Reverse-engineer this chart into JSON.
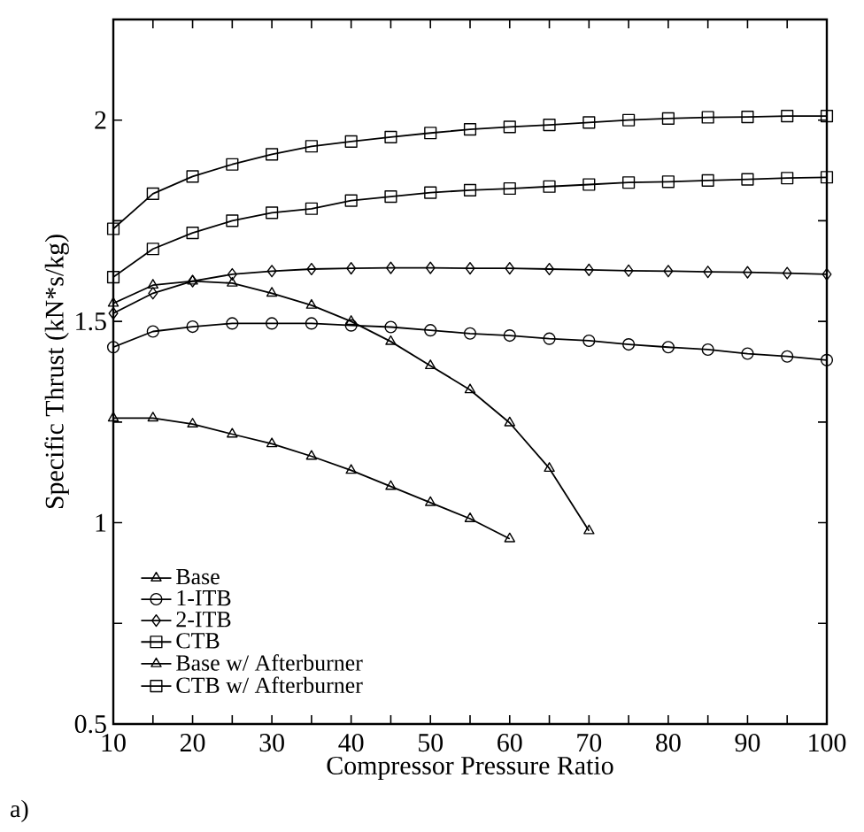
{
  "chart_data": {
    "type": "line",
    "xlabel": "Compressor Pressure Ratio",
    "ylabel": "Specific Thrust (kN*s/kg)",
    "xlim": [
      10,
      100
    ],
    "ylim": [
      0.5,
      2.25
    ],
    "xticks": [
      10,
      {
        "value": 15,
        "label": null
      },
      20,
      {
        "value": 25,
        "label": null
      },
      30,
      {
        "value": 35,
        "label": null
      },
      40,
      {
        "value": 45,
        "label": null
      },
      50,
      {
        "value": 55,
        "label": null
      },
      60,
      {
        "value": 65,
        "label": null
      },
      70,
      {
        "value": 75,
        "label": null
      },
      80,
      {
        "value": 85,
        "label": null
      },
      90,
      {
        "value": 95,
        "label": null
      },
      100
    ],
    "yticks": [
      0.5,
      {
        "value": 0.75,
        "label": null
      },
      1,
      {
        "value": 1.25,
        "label": null
      },
      1.5,
      {
        "value": 1.75,
        "label": null
      },
      2
    ],
    "legend": "bottom left",
    "grid": false,
    "line_style": "solid",
    "annotations": [
      "a)"
    ],
    "series": [
      {
        "name": "Base",
        "color": "#000000",
        "marker": "triangle",
        "x": [
          10,
          15,
          20,
          25,
          30,
          35,
          40,
          45,
          50,
          55,
          60
        ],
        "values": [
          1.26,
          1.26,
          1.245,
          1.22,
          1.196,
          1.165,
          1.13,
          1.09,
          1.05,
          1.01,
          0.96
        ]
      },
      {
        "name": "1-ITB",
        "color": "#000000",
        "marker": "circle",
        "x": [
          10,
          15,
          20,
          25,
          30,
          35,
          40,
          45,
          50,
          55,
          60,
          65,
          70,
          75,
          80,
          85,
          90,
          95,
          100
        ],
        "values": [
          1.436,
          1.475,
          1.487,
          1.495,
          1.495,
          1.495,
          1.49,
          1.486,
          1.478,
          1.47,
          1.465,
          1.457,
          1.452,
          1.443,
          1.436,
          1.43,
          1.42,
          1.413,
          1.404
        ]
      },
      {
        "name": "2-ITB",
        "color": "#000000",
        "marker": "diamond",
        "x": [
          10,
          15,
          20,
          25,
          30,
          35,
          40,
          45,
          50,
          55,
          60,
          65,
          70,
          75,
          80,
          85,
          90,
          95,
          100
        ],
        "values": [
          1.52,
          1.57,
          1.6,
          1.617,
          1.625,
          1.63,
          1.632,
          1.633,
          1.633,
          1.632,
          1.632,
          1.63,
          1.628,
          1.626,
          1.625,
          1.623,
          1.622,
          1.62,
          1.617
        ]
      },
      {
        "name": "CTB",
        "color": "#000000",
        "marker": "square",
        "x": [
          10,
          15,
          20,
          25,
          30,
          35,
          40,
          45,
          50,
          55,
          60,
          65,
          70,
          75,
          80,
          85,
          90,
          95,
          100
        ],
        "values": [
          1.61,
          1.68,
          1.72,
          1.75,
          1.77,
          1.78,
          1.8,
          1.81,
          1.82,
          1.826,
          1.83,
          1.835,
          1.84,
          1.845,
          1.847,
          1.85,
          1.853,
          1.856,
          1.858
        ]
      },
      {
        "name": "Base w/ Afterburner",
        "color": "#000000",
        "marker": "triangle",
        "x": [
          10,
          15,
          20,
          25,
          30,
          35,
          40,
          45,
          50,
          55,
          60,
          65,
          70
        ],
        "values": [
          1.545,
          1.59,
          1.6,
          1.595,
          1.57,
          1.54,
          1.5,
          1.45,
          1.39,
          1.33,
          1.248,
          1.135,
          0.98
        ]
      },
      {
        "name": "CTB w/ Afterburner",
        "color": "#000000",
        "marker": "square",
        "x": [
          10,
          15,
          20,
          25,
          30,
          35,
          40,
          45,
          50,
          55,
          60,
          65,
          70,
          75,
          80,
          85,
          90,
          95,
          100
        ],
        "values": [
          1.73,
          1.817,
          1.86,
          1.89,
          1.915,
          1.935,
          1.947,
          1.958,
          1.968,
          1.977,
          1.983,
          1.988,
          1.994,
          2.0,
          2.004,
          2.007,
          2.008,
          2.01,
          2.01
        ]
      }
    ]
  }
}
